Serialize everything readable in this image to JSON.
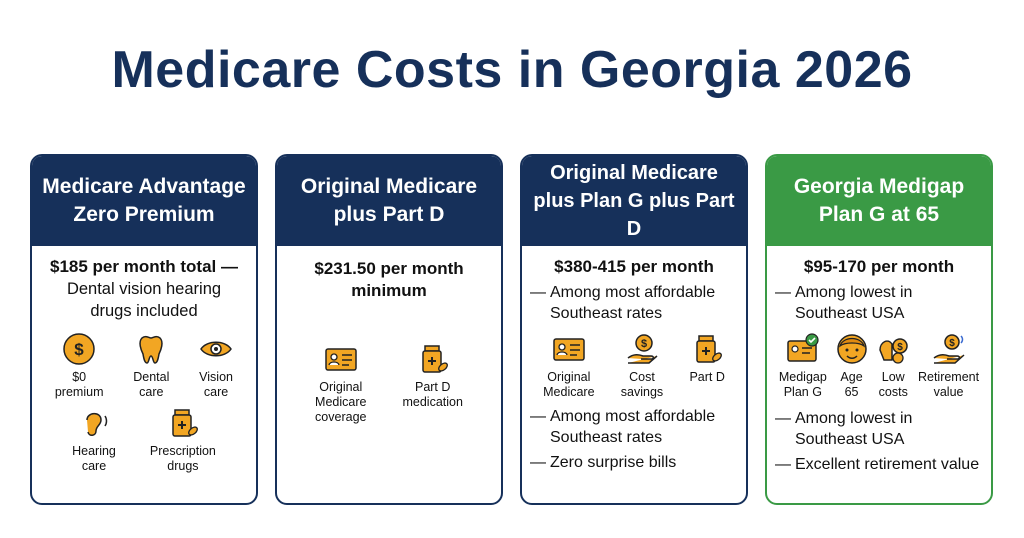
{
  "title": "Medicare Costs in Georgia 2026",
  "colors": {
    "navy": "#16305a",
    "green": "#3a9a45",
    "icon_orange": "#f2a623"
  },
  "cards": [
    {
      "header": "Medicare Advantage\nZero Premium",
      "price": "$185 per month total —",
      "price_sub": "Dental vision hearing drugs included",
      "icons": [
        {
          "icon": "dollar-coin-icon",
          "label": "$0\npremium"
        },
        {
          "icon": "tooth-icon",
          "label": "Dental\ncare"
        },
        {
          "icon": "eye-icon",
          "label": "Vision\ncare"
        },
        {
          "icon": "ear-icon",
          "label": "Hearing\ncare"
        },
        {
          "icon": "pill-bottle-icon",
          "label": "Prescription\ndrugs"
        }
      ]
    },
    {
      "header": "Original Medicare\nplus Part D",
      "price": "$231.50 per month\nminimum",
      "icons": [
        {
          "icon": "id-card-icon",
          "label": "Original\nMedicare\ncoverage"
        },
        {
          "icon": "pill-bottle-icon",
          "label": "Part D\nmedication"
        }
      ]
    },
    {
      "header": "Original Medicare\nplus Plan G plus Part D",
      "price": "$380-415 per month",
      "bullets_top": [
        "Among most affordable Southeast rates"
      ],
      "icons": [
        {
          "icon": "id-card-icon",
          "label": "Original\nMedicare"
        },
        {
          "icon": "hand-coin-icon",
          "label": "Cost\nsavings"
        },
        {
          "icon": "pill-bottle-icon",
          "label": "Part D"
        }
      ],
      "bullets_bottom": [
        "Among most affordable Southeast rates",
        "Zero surprise bills"
      ]
    },
    {
      "header": "Georgia Medigap\nPlan G at 65",
      "price": "$95-170 per month",
      "bullets_top": [
        "Among lowest in Southeast USA"
      ],
      "icons": [
        {
          "icon": "medigap-card-icon",
          "label": "Medigap\nPlan G"
        },
        {
          "icon": "face-icon",
          "label": "Age\n65"
        },
        {
          "icon": "coins-hand-icon",
          "label": "Low\ncosts"
        },
        {
          "icon": "retirement-hand-icon",
          "label": "Retirement\nvalue"
        }
      ],
      "bullets_bottom": [
        "Among lowest in Southeast USA",
        "Excellent retirement value"
      ]
    }
  ]
}
